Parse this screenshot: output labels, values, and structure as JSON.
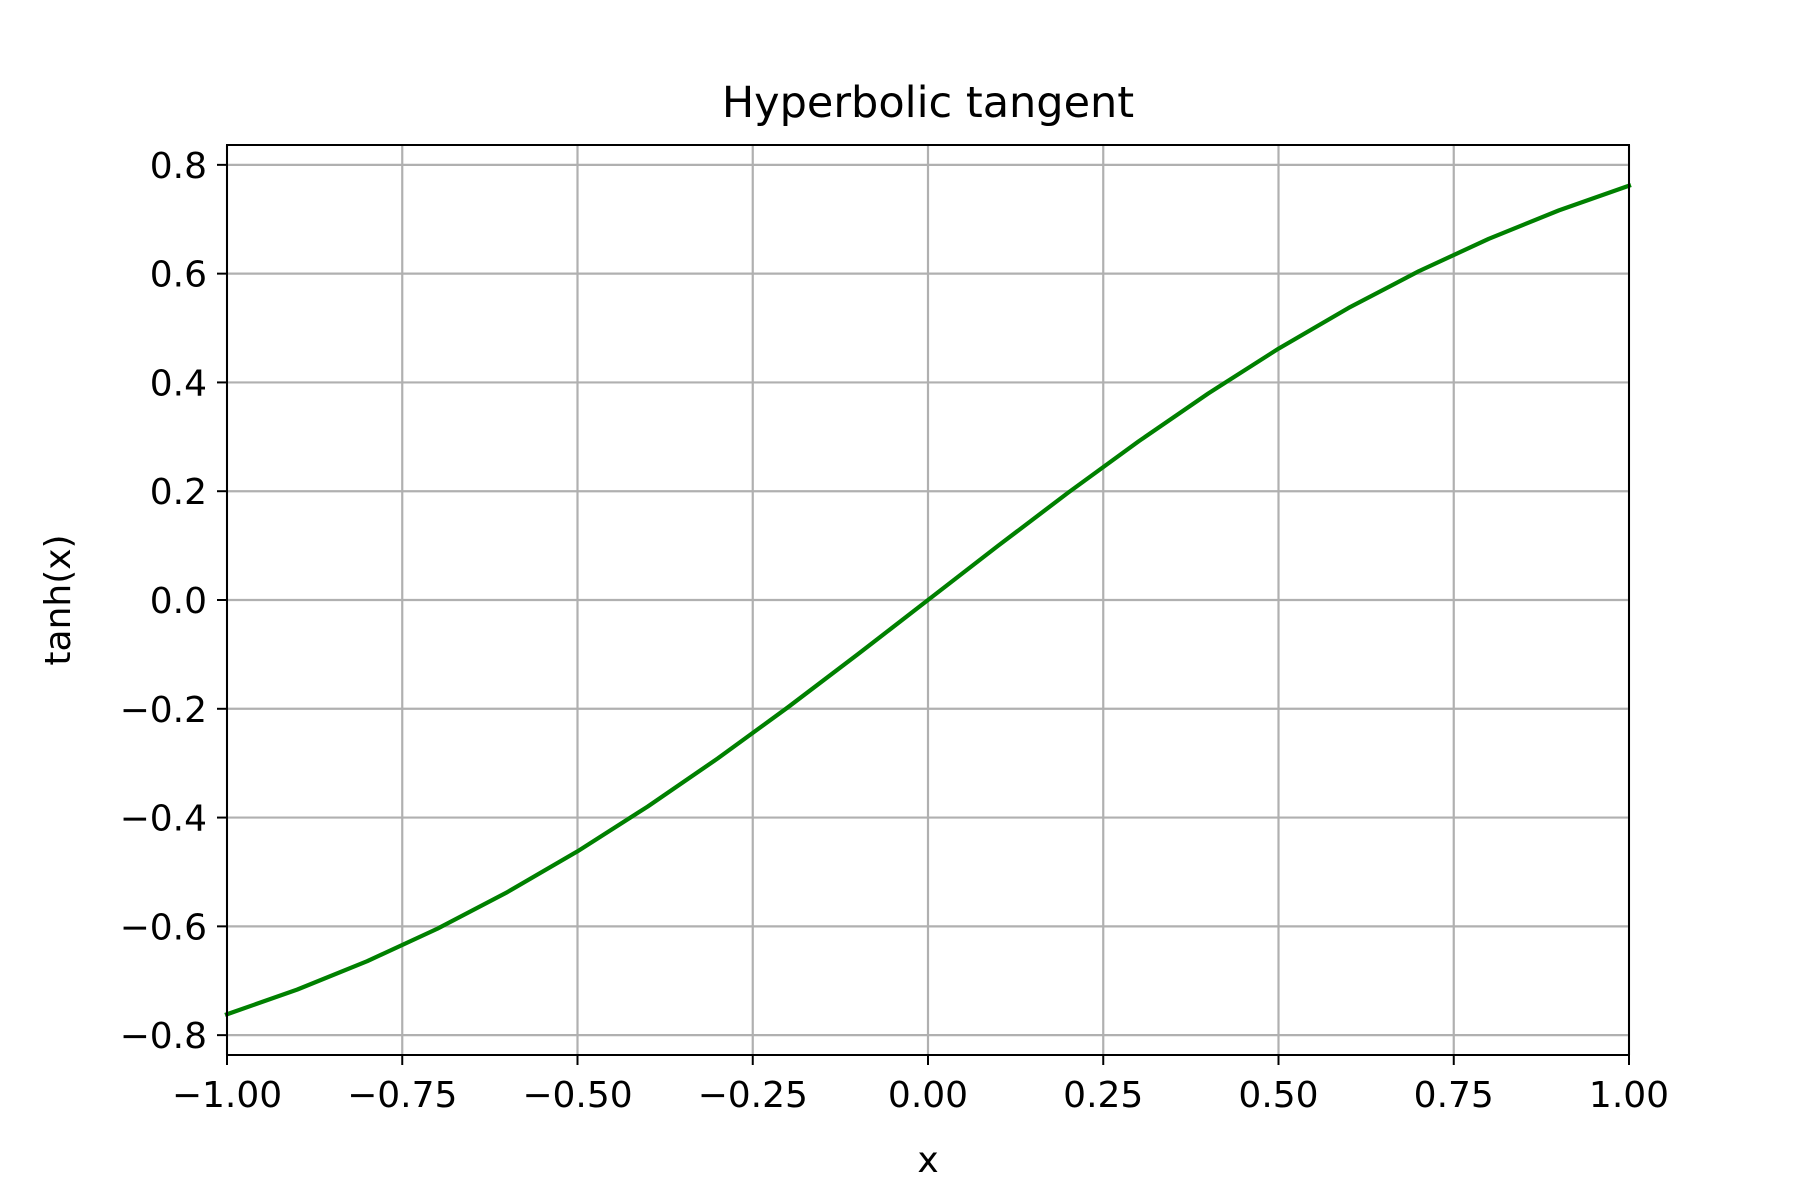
{
  "chart_data": {
    "type": "line",
    "title": "Hyperbolic tangent",
    "xlabel": "x",
    "ylabel": "tanh(x)",
    "xlim": [
      -1.0,
      1.0
    ],
    "ylim": [
      -0.8365,
      0.8365
    ],
    "grid": true,
    "x_ticks": [
      -1.0,
      -0.75,
      -0.5,
      -0.25,
      0.0,
      0.25,
      0.5,
      0.75,
      1.0
    ],
    "x_tick_labels": [
      "−1.00",
      "−0.75",
      "−0.50",
      "−0.25",
      "0.00",
      "0.25",
      "0.50",
      "0.75",
      "1.00"
    ],
    "y_ticks": [
      -0.8,
      -0.6,
      -0.4,
      -0.2,
      0.0,
      0.2,
      0.4,
      0.6,
      0.8
    ],
    "y_tick_labels": [
      "−0.8",
      "−0.6",
      "−0.4",
      "−0.2",
      "0.0",
      "0.2",
      "0.4",
      "0.6",
      "0.8"
    ],
    "series": [
      {
        "color": "#008000",
        "x": [
          -1.0,
          -0.9,
          -0.8,
          -0.7,
          -0.6,
          -0.5,
          -0.4,
          -0.3,
          -0.2,
          -0.1,
          0.0,
          0.1,
          0.2,
          0.3,
          0.4,
          0.5,
          0.6,
          0.7,
          0.8,
          0.9,
          1.0
        ],
        "y": [
          -0.7616,
          -0.7163,
          -0.664,
          -0.6044,
          -0.537,
          -0.4621,
          -0.3799,
          -0.2913,
          -0.1974,
          -0.0997,
          0.0,
          0.0997,
          0.1974,
          0.2913,
          0.3799,
          0.4621,
          0.537,
          0.6044,
          0.664,
          0.7163,
          0.7616
        ]
      }
    ]
  }
}
